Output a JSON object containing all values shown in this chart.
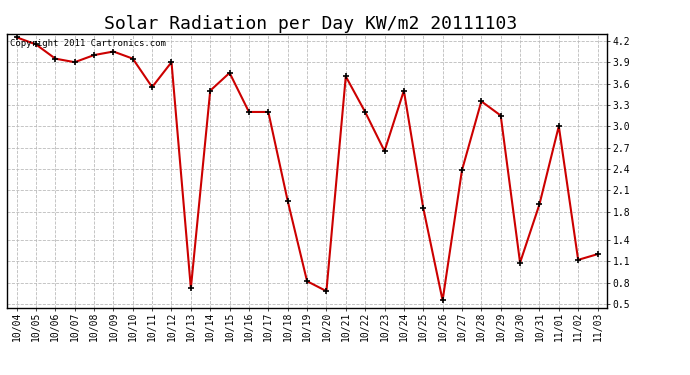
{
  "title": "Solar Radiation per Day KW/m2 20111103",
  "copyright_text": "Copyright 2011 Cartronics.com",
  "dates": [
    "10/04",
    "10/05",
    "10/06",
    "10/07",
    "10/08",
    "10/09",
    "10/10",
    "10/11",
    "10/12",
    "10/13",
    "10/14",
    "10/15",
    "10/16",
    "10/17",
    "10/18",
    "10/19",
    "10/20",
    "10/21",
    "10/22",
    "10/23",
    "10/24",
    "10/25",
    "10/26",
    "10/27",
    "10/28",
    "10/29",
    "10/30",
    "10/31",
    "11/01",
    "11/02",
    "11/03"
  ],
  "values": [
    4.25,
    4.15,
    3.95,
    3.9,
    4.0,
    4.05,
    3.95,
    3.55,
    3.9,
    0.72,
    3.5,
    3.75,
    3.2,
    3.2,
    1.95,
    0.82,
    0.68,
    3.7,
    3.2,
    2.65,
    3.5,
    1.85,
    0.55,
    2.38,
    3.35,
    3.15,
    1.08,
    1.9,
    3.0,
    1.12,
    1.2
  ],
  "line_color": "#cc0000",
  "marker": "+",
  "marker_size": 5,
  "marker_edge_width": 1.2,
  "line_width": 1.5,
  "bg_color": "#ffffff",
  "grid_color": "#bbbbbb",
  "grid_style": "--",
  "ylim": [
    0.45,
    4.3
  ],
  "yticks": [
    0.5,
    0.8,
    1.1,
    1.4,
    1.8,
    2.1,
    2.4,
    2.7,
    3.0,
    3.3,
    3.6,
    3.9,
    4.2
  ],
  "ytick_labels": [
    "0.5",
    "0.8",
    "1.1",
    "1.4",
    "1.8",
    "2.1",
    "2.4",
    "2.7",
    "3.0",
    "3.3",
    "3.6",
    "3.9",
    "4.2"
  ],
  "title_fontsize": 13,
  "tick_fontsize": 7,
  "copyright_fontsize": 6.5
}
